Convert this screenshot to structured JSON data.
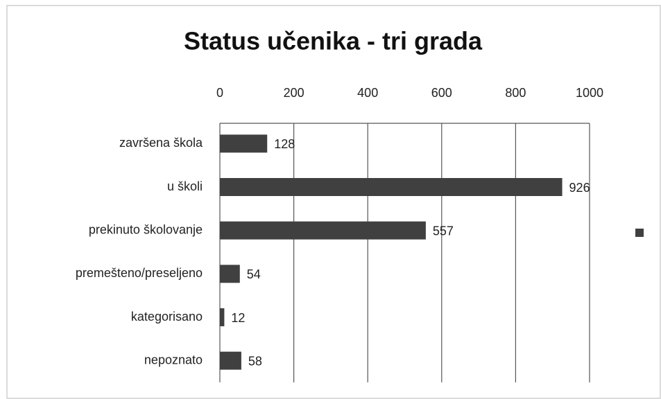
{
  "chart_data": {
    "type": "bar",
    "orientation": "horizontal",
    "title": "Status učenika - tri grada",
    "categories": [
      "završena škola",
      "u školi",
      "prekinuto školovanje",
      "premešteno/preseljeno",
      "kategorisano",
      "nepoznato"
    ],
    "values": [
      128,
      926,
      557,
      54,
      12,
      58
    ],
    "color": "#404040",
    "xlim": [
      0,
      1000
    ],
    "xticks": [
      0,
      200,
      400,
      600,
      800,
      1000
    ],
    "grid": true
  }
}
